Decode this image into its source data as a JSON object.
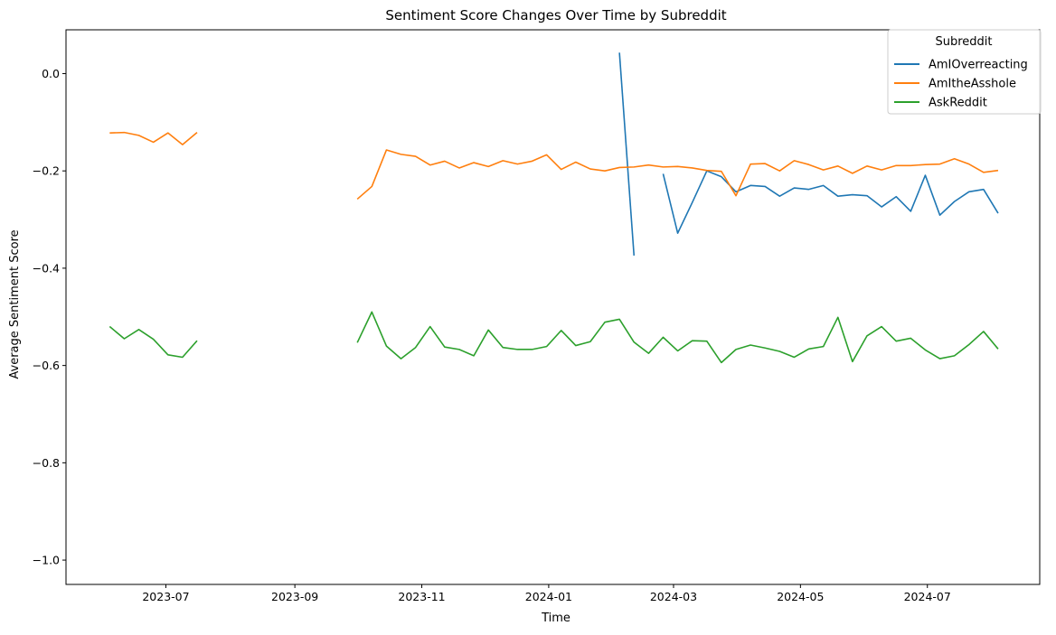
{
  "chart_data": {
    "type": "line",
    "title": "Sentiment Score Changes Over Time by Subreddit",
    "xlabel": "Time",
    "ylabel": "Average Sentiment Score",
    "x_ticks": [
      "2023-07",
      "2023-09",
      "2023-11",
      "2024-01",
      "2024-03",
      "2024-05",
      "2024-07"
    ],
    "y_ticks": [
      0.0,
      -0.2,
      -0.4,
      -0.6,
      -0.8,
      -1.0
    ],
    "y_tick_labels": [
      "0.0",
      "−0.2",
      "−0.4",
      "−0.6",
      "−0.8",
      "−1.0"
    ],
    "xlim": [
      "2023-05-14",
      "2024-08-24"
    ],
    "ylim": [
      -1.05,
      0.09
    ],
    "grid": false,
    "legend": {
      "title": "Subreddit",
      "position": "top-right"
    },
    "series": [
      {
        "name": "AmIOverreacting",
        "color": "#1f77b4",
        "points": [
          [
            "2024-02-04",
            0.043
          ],
          [
            "2024-02-11",
            -0.374
          ],
          [
            "2024-02-18",
            null
          ],
          [
            "2024-02-25",
            -0.206
          ],
          [
            "2024-03-03",
            -0.328
          ],
          [
            "2024-03-10",
            -0.265
          ],
          [
            "2024-03-17",
            -0.2
          ],
          [
            "2024-03-24",
            -0.212
          ],
          [
            "2024-03-31",
            -0.243
          ],
          [
            "2024-04-07",
            -0.23
          ],
          [
            "2024-04-14",
            -0.232
          ],
          [
            "2024-04-21",
            -0.252
          ],
          [
            "2024-04-28",
            -0.235
          ],
          [
            "2024-05-05",
            -0.238
          ],
          [
            "2024-05-12",
            -0.23
          ],
          [
            "2024-05-19",
            -0.252
          ],
          [
            "2024-05-26",
            -0.249
          ],
          [
            "2024-06-02",
            -0.251
          ],
          [
            "2024-06-09",
            -0.274
          ],
          [
            "2024-06-16",
            -0.253
          ],
          [
            "2024-06-23",
            -0.283
          ],
          [
            "2024-06-30",
            -0.209
          ],
          [
            "2024-07-07",
            -0.291
          ],
          [
            "2024-07-14",
            -0.263
          ],
          [
            "2024-07-21",
            -0.243
          ],
          [
            "2024-07-28",
            -0.238
          ],
          [
            "2024-08-04",
            -0.287
          ]
        ]
      },
      {
        "name": "AmItheAsshole",
        "color": "#ff7f0e",
        "points": [
          [
            "2023-06-04",
            -0.122
          ],
          [
            "2023-06-11",
            -0.121
          ],
          [
            "2023-06-18",
            -0.127
          ],
          [
            "2023-06-25",
            -0.141
          ],
          [
            "2023-07-02",
            -0.122
          ],
          [
            "2023-07-09",
            -0.146
          ],
          [
            "2023-07-16",
            -0.121
          ],
          [
            "2023-07-23",
            null
          ],
          [
            "2023-10-01",
            -0.258
          ],
          [
            "2023-10-08",
            -0.232
          ],
          [
            "2023-10-15",
            -0.157
          ],
          [
            "2023-10-22",
            -0.166
          ],
          [
            "2023-10-29",
            -0.17
          ],
          [
            "2023-11-05",
            -0.188
          ],
          [
            "2023-11-12",
            -0.18
          ],
          [
            "2023-11-19",
            -0.194
          ],
          [
            "2023-11-26",
            -0.183
          ],
          [
            "2023-12-03",
            -0.191
          ],
          [
            "2023-12-10",
            -0.179
          ],
          [
            "2023-12-17",
            -0.186
          ],
          [
            "2023-12-24",
            -0.18
          ],
          [
            "2023-12-31",
            -0.167
          ],
          [
            "2024-01-07",
            -0.197
          ],
          [
            "2024-01-14",
            -0.182
          ],
          [
            "2024-01-21",
            -0.196
          ],
          [
            "2024-01-28",
            -0.2
          ],
          [
            "2024-02-04",
            -0.193
          ],
          [
            "2024-02-11",
            -0.192
          ],
          [
            "2024-02-18",
            -0.188
          ],
          [
            "2024-02-25",
            -0.192
          ],
          [
            "2024-03-03",
            -0.191
          ],
          [
            "2024-03-10",
            -0.194
          ],
          [
            "2024-03-17",
            -0.199
          ],
          [
            "2024-03-24",
            -0.201
          ],
          [
            "2024-03-31",
            -0.251
          ],
          [
            "2024-04-07",
            -0.186
          ],
          [
            "2024-04-14",
            -0.185
          ],
          [
            "2024-04-21",
            -0.2
          ],
          [
            "2024-04-28",
            -0.179
          ],
          [
            "2024-05-05",
            -0.187
          ],
          [
            "2024-05-12",
            -0.198
          ],
          [
            "2024-05-19",
            -0.19
          ],
          [
            "2024-05-26",
            -0.205
          ],
          [
            "2024-06-02",
            -0.19
          ],
          [
            "2024-06-09",
            -0.198
          ],
          [
            "2024-06-16",
            -0.189
          ],
          [
            "2024-06-23",
            -0.189
          ],
          [
            "2024-06-30",
            -0.187
          ],
          [
            "2024-07-07",
            -0.186
          ],
          [
            "2024-07-14",
            -0.175
          ],
          [
            "2024-07-21",
            -0.186
          ],
          [
            "2024-07-28",
            -0.203
          ],
          [
            "2024-08-04",
            -0.199
          ]
        ]
      },
      {
        "name": "AskReddit",
        "color": "#2ca02c",
        "points": [
          [
            "2023-06-04",
            -0.52
          ],
          [
            "2023-06-11",
            -0.545
          ],
          [
            "2023-06-18",
            -0.526
          ],
          [
            "2023-06-25",
            -0.546
          ],
          [
            "2023-07-02",
            -0.578
          ],
          [
            "2023-07-09",
            -0.583
          ],
          [
            "2023-07-16",
            -0.549
          ],
          [
            "2023-07-23",
            null
          ],
          [
            "2023-10-01",
            -0.553
          ],
          [
            "2023-10-08",
            -0.49
          ],
          [
            "2023-10-15",
            -0.56
          ],
          [
            "2023-10-22",
            -0.586
          ],
          [
            "2023-10-29",
            -0.563
          ],
          [
            "2023-11-05",
            -0.52
          ],
          [
            "2023-11-12",
            -0.562
          ],
          [
            "2023-11-19",
            -0.567
          ],
          [
            "2023-11-26",
            -0.58
          ],
          [
            "2023-12-03",
            -0.527
          ],
          [
            "2023-12-10",
            -0.563
          ],
          [
            "2023-12-17",
            -0.567
          ],
          [
            "2023-12-24",
            -0.567
          ],
          [
            "2023-12-31",
            -0.561
          ],
          [
            "2024-01-07",
            -0.528
          ],
          [
            "2024-01-14",
            -0.559
          ],
          [
            "2024-01-21",
            -0.551
          ],
          [
            "2024-01-28",
            -0.511
          ],
          [
            "2024-02-04",
            -0.505
          ],
          [
            "2024-02-11",
            -0.552
          ],
          [
            "2024-02-18",
            -0.575
          ],
          [
            "2024-02-25",
            -0.542
          ],
          [
            "2024-03-03",
            -0.57
          ],
          [
            "2024-03-10",
            -0.549
          ],
          [
            "2024-03-17",
            -0.55
          ],
          [
            "2024-03-24",
            -0.594
          ],
          [
            "2024-03-31",
            -0.567
          ],
          [
            "2024-04-07",
            -0.558
          ],
          [
            "2024-04-14",
            -0.564
          ],
          [
            "2024-04-21",
            -0.571
          ],
          [
            "2024-04-28",
            -0.583
          ],
          [
            "2024-05-05",
            -0.566
          ],
          [
            "2024-05-12",
            -0.561
          ],
          [
            "2024-05-19",
            -0.501
          ],
          [
            "2024-05-26",
            -0.592
          ],
          [
            "2024-06-02",
            -0.539
          ],
          [
            "2024-06-09",
            -0.52
          ],
          [
            "2024-06-16",
            -0.55
          ],
          [
            "2024-06-23",
            -0.544
          ],
          [
            "2024-06-30",
            -0.568
          ],
          [
            "2024-07-07",
            -0.586
          ],
          [
            "2024-07-14",
            -0.58
          ],
          [
            "2024-07-21",
            -0.557
          ],
          [
            "2024-07-28",
            -0.53
          ],
          [
            "2024-08-04",
            -0.566
          ]
        ]
      }
    ]
  }
}
